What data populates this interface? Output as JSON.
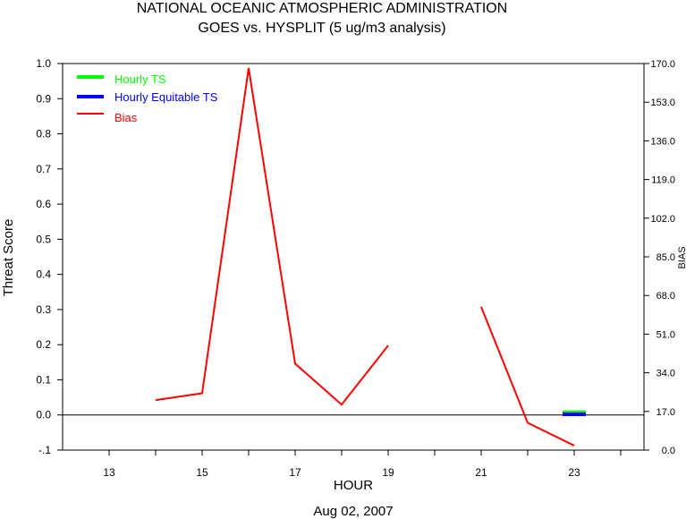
{
  "chart_data": {
    "type": "line",
    "title": "NATIONAL OCEANIC ATMOSPHERIC ADMINISTRATION",
    "subtitle": "GOES vs. HYSPLIT  (5 ug/m3 analysis)",
    "xlabel": "HOUR",
    "date_label": "Aug 02, 2007",
    "ylabel_left": "Threat Score",
    "ylabel_right": "BIAS",
    "xlim": [
      12,
      24.5
    ],
    "ylim_left": [
      -0.1,
      1.0
    ],
    "ylim_right": [
      0,
      170
    ],
    "x_tick_labels": [
      "13",
      "15",
      "17",
      "19",
      "21",
      "23"
    ],
    "y_left_tick_labels": [
      "-.1",
      "0.0",
      "0.1",
      "0.2",
      "0.3",
      "0.4",
      "0.5",
      "0.6",
      "0.7",
      "0.8",
      "0.9",
      "1.0"
    ],
    "y_right_tick_labels": [
      "0.0",
      "17.0",
      "34.0",
      "51.0",
      "68.0",
      "85.0",
      "102.0",
      "119.0",
      "136.0",
      "153.0",
      "170.0"
    ],
    "legend_position": "top-left",
    "grid": false,
    "series": [
      {
        "name": "Hourly TS",
        "color": "#00ff00",
        "axis": "left",
        "segments": [
          [
            {
              "x": 22.75,
              "y": 0.008
            },
            {
              "x": 23.25,
              "y": 0.008
            }
          ]
        ]
      },
      {
        "name": "Hourly Equitable TS",
        "color": "#0000ff",
        "axis": "left",
        "segments": [
          [
            {
              "x": 22.75,
              "y": 0.002
            },
            {
              "x": 23.25,
              "y": 0.002
            }
          ]
        ]
      },
      {
        "name": "Bias",
        "color": "#ff0000",
        "axis": "right",
        "segments": [
          [
            {
              "x": 14,
              "y": 22
            },
            {
              "x": 15,
              "y": 25
            },
            {
              "x": 16,
              "y": 168
            },
            {
              "x": 17,
              "y": 38
            },
            {
              "x": 18,
              "y": 20
            },
            {
              "x": 19,
              "y": 46
            }
          ],
          [
            {
              "x": 21,
              "y": 63
            },
            {
              "x": 22,
              "y": 12
            },
            {
              "x": 23,
              "y": 2
            }
          ]
        ]
      }
    ]
  }
}
